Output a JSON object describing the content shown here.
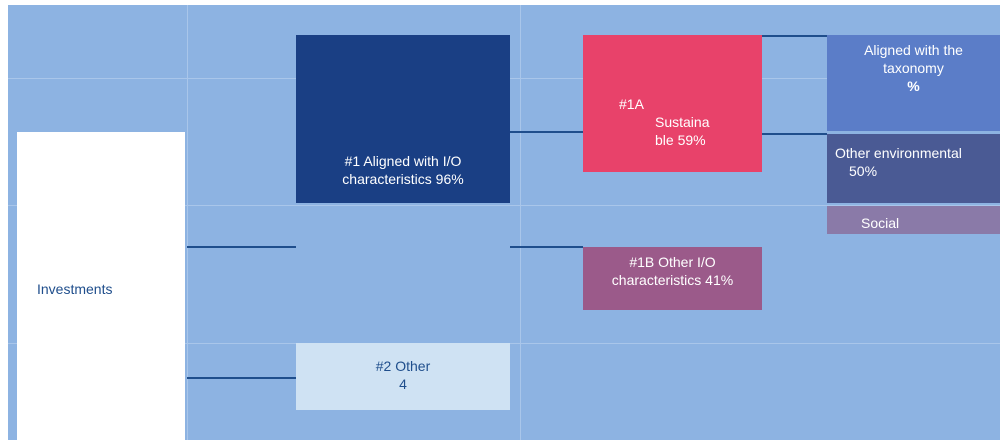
{
  "nodes": [
    {
      "lines": [
        "Investments"
      ]
    },
    {
      "lines": [
        "#1 Aligned with I/O",
        "characteristics 96%"
      ]
    },
    {
      "lines": [
        "#2 Other",
        "4"
      ]
    },
    {
      "lines": [
        "#1A",
        "Sustaina",
        "ble 59%"
      ]
    },
    {
      "lines": [
        "#1B Other I/O",
        "characteristics 41%"
      ]
    },
    {
      "lines": [
        "Aligned with the",
        "taxonomy",
        "%"
      ]
    },
    {
      "lines": [
        "Other environmental",
        "50%"
      ]
    },
    {
      "lines": [
        "Social"
      ]
    }
  ]
}
